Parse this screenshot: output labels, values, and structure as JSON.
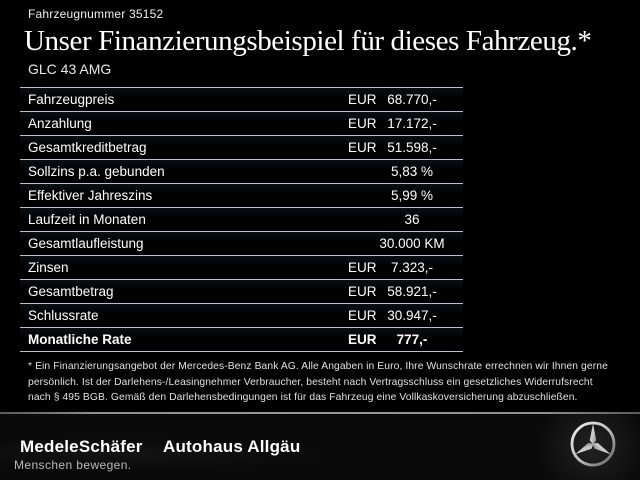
{
  "header": {
    "vehicle_number": "Fahrzeugnummer 35152",
    "title": "Unser Finanzierungsbeispiel für dieses Fahrzeug.*",
    "model": "GLC 43 AMG"
  },
  "table": {
    "rows": [
      {
        "label": "Fahrzeugpreis",
        "currency": "EUR",
        "value": "68.770,-",
        "bold": false
      },
      {
        "label": "Anzahlung",
        "currency": "EUR",
        "value": "17.172,-",
        "bold": false
      },
      {
        "label": "Gesamtkreditbetrag",
        "currency": "EUR",
        "value": "51.598,-",
        "bold": false
      },
      {
        "label": "Sollzins p.a. gebunden",
        "currency": "",
        "value": "5,83 %",
        "bold": false
      },
      {
        "label": "Effektiver Jahreszins",
        "currency": "",
        "value": "5,99 %",
        "bold": false
      },
      {
        "label": "Laufzeit in Monaten",
        "currency": "",
        "value": "36",
        "bold": false
      },
      {
        "label": "Gesamtlaufleistung",
        "currency": "",
        "value": "30.000 KM",
        "bold": false
      },
      {
        "label": "Zinsen",
        "currency": "EUR",
        "value": "7.323,-",
        "bold": false
      },
      {
        "label": "Gesamtbetrag",
        "currency": "EUR",
        "value": "58.921,-",
        "bold": false
      },
      {
        "label": "Schlussrate",
        "currency": "EUR",
        "value": "30.947,-",
        "bold": false
      },
      {
        "label": "Monatliche Rate",
        "currency": "EUR",
        "value": "777,-",
        "bold": true
      }
    ]
  },
  "footnote": "* Ein Finanzierungsangebot der Mercedes-Benz Bank AG. Alle Angaben in Euro, Ihre Wunschrate errechnen wir Ihnen gerne persönlich. Ist der Darlehens-/Leasingnehmer Verbraucher, besteht nach Vertragsschluss ein gesetzliches Widerrufsrecht nach § 495 BGB. Gemäß den Darlehensbedingungen ist für das Fahrzeug eine Vollkaskoversicherung abzuschließen.",
  "footer": {
    "dealer_name": "MedeleSchäfer",
    "dealer_secondary": "Autohaus Allgäu",
    "tagline": "Menschen bewegen.",
    "brand_icon": "mercedes-star-icon"
  },
  "colors": {
    "background": "#000000",
    "text": "#ffffff",
    "table_line": "#b6c0ca",
    "footer_separator": "#989898",
    "tagline_text": "#b8b8b8"
  }
}
